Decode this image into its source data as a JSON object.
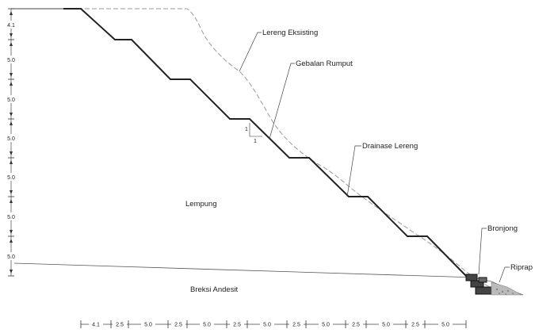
{
  "labels": {
    "lereng_eksisting": "Lereng Eksisting",
    "gebalan_rumput": "Gebalan Rumput",
    "drainase_lereng": "Drainase Lereng",
    "bronjong": "Bronjong",
    "riprap": "Riprap",
    "lempung": "Lempung",
    "breksi_andesit": "Breksi Andesit",
    "slope_ratio_v": "1",
    "slope_ratio_h": "1"
  },
  "vertical_dimensions": [
    "4.1",
    "5.0",
    "5.0",
    "5.0",
    "5.0",
    "5.0",
    "5.0"
  ],
  "horizontal_dimensions": [
    "4.1",
    "2.5",
    "5.0",
    "2.5",
    "5.0",
    "2.5",
    "5.0",
    "2.5",
    "5.0",
    "2.5",
    "5.0",
    "2.5",
    "5.0"
  ]
}
